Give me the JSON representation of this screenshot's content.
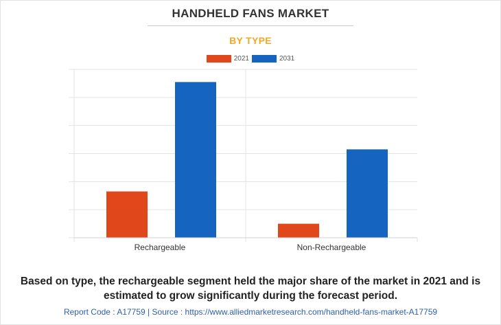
{
  "header": {
    "title": "HANDHELD FANS MARKET",
    "subtitle": "BY TYPE"
  },
  "colors": {
    "series_2021": "#e0471a",
    "series_2031": "#1565c0",
    "subtitle": "#f5a623",
    "grid": "#e3e3e3"
  },
  "chart_data": {
    "type": "bar",
    "title": "HANDHELD FANS MARKET",
    "subtitle": "BY TYPE",
    "categories": [
      "Rechargeable",
      "Non-Rechargeable"
    ],
    "series": [
      {
        "name": "2021",
        "values": [
          1.65,
          0.5
        ]
      },
      {
        "name": "2031",
        "values": [
          5.55,
          3.15
        ]
      }
    ],
    "ylim": [
      0,
      6
    ],
    "xlabel": "",
    "ylabel": "",
    "grid": true,
    "legend": "top-center"
  },
  "description": "Based on type, the rechargeable segment held the major share of the market in 2021 and is estimated to grow significantly during the forecast period.",
  "footer": {
    "report_code": "Report Code : A17759",
    "separator": "|",
    "source": "Source : https://www.alliedmarketresearch.com/handheld-fans-market-A17759"
  }
}
